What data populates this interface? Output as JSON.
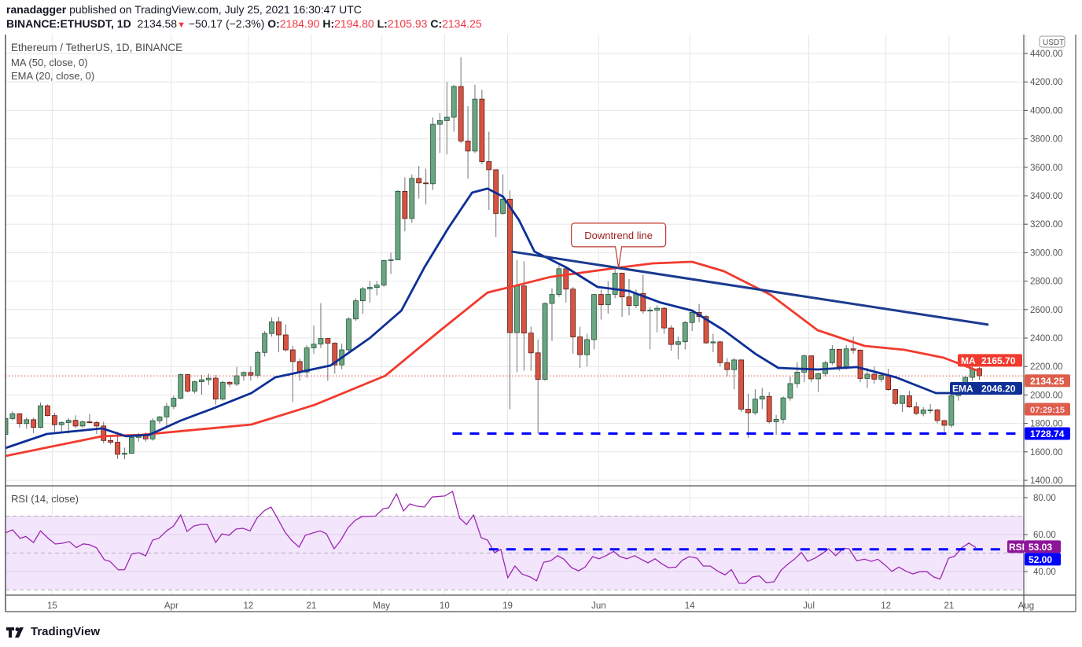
{
  "header": {
    "author": "ranadagger",
    "published": "published on TradingView.com, July 25, 2021 16:30:47 UTC",
    "symbol": "BINANCE:ETHUSDT, 1D",
    "last": "2134.58",
    "change": "−50.17 (−2.3%)",
    "o_label": "O:",
    "o": "2184.90",
    "h_label": "H:",
    "h": "2194.80",
    "l_label": "L:",
    "l": "2105.93",
    "c_label": "C:",
    "c": "2134.25"
  },
  "legend": {
    "title": "Ethereum / TetherUS, 1D, BINANCE",
    "ma": "MA (50, close, 0)",
    "ema": "EMA (20, close, 0)",
    "rsi": "RSI (14, close)"
  },
  "logo": "TradingView",
  "colors": {
    "up": "#6ba583",
    "up_border": "#225437",
    "down": "#d75442",
    "down_border": "#5b1a13",
    "ma": "#f23a2e",
    "ema": "#0d2f96",
    "rsi": "#9c27b0",
    "level": "#0000ff",
    "trend": "#1c3b8f"
  },
  "chart_data": {
    "type": "candlestick",
    "currency": "USDT",
    "start_date": "2021-03-08",
    "y_ticks": [
      "1400.00",
      "1600.00",
      "1800.00",
      "2000.00",
      "2200.00",
      "2400.00",
      "2600.00",
      "2800.00",
      "3000.00",
      "3200.00",
      "3400.00",
      "3600.00",
      "3800.00",
      "4000.00",
      "4200.00",
      "4400.00"
    ],
    "ylim": [
      1400,
      4400
    ],
    "x_ticks": [
      {
        "label": "15",
        "day": 7
      },
      {
        "label": "Apr",
        "day": 24
      },
      {
        "label": "12",
        "day": 35
      },
      {
        "label": "21",
        "day": 44
      },
      {
        "label": "May",
        "day": 54
      },
      {
        "label": "10",
        "day": 63
      },
      {
        "label": "19",
        "day": 72
      },
      {
        "label": "Jun",
        "day": 85
      },
      {
        "label": "14",
        "day": 98
      },
      {
        "label": "Jul",
        "day": 115
      },
      {
        "label": "12",
        "day": 126
      },
      {
        "label": "21",
        "day": 135
      },
      {
        "label": "Aug",
        "day": 146
      }
    ],
    "close": [
      1834,
      1868,
      1799,
      1826,
      1772,
      1924,
      1855,
      1791,
      1806,
      1822,
      1782,
      1811,
      1806,
      1782,
      1680,
      1668,
      1583,
      1590,
      1702,
      1716,
      1691,
      1819,
      1846,
      1919,
      1977,
      2143,
      2027,
      2093,
      2107,
      2118,
      1971,
      2089,
      2077,
      2135,
      2158,
      2139,
      2299,
      2432,
      2514,
      2422,
      2317,
      2235,
      2161,
      2331,
      2357,
      2397,
      2364,
      2211,
      2317,
      2534,
      2662,
      2746,
      2756,
      2772,
      2945,
      2950,
      3431,
      3240,
      3522,
      3490,
      3484,
      3902,
      3928,
      3952,
      4168,
      3785,
      3715,
      4079,
      3640,
      3583,
      3276,
      3376,
      2438,
      2766,
      2435,
      2296,
      2109,
      2643,
      2706,
      2887,
      2744,
      2408,
      2283,
      2389,
      2706,
      2634,
      2707,
      2856,
      2689,
      2629,
      2713,
      2590,
      2596,
      2609,
      2471,
      2355,
      2374,
      2509,
      2580,
      2551,
      2366,
      2373,
      2227,
      2178,
      2246,
      1900,
      1875,
      1971,
      1990,
      1812,
      1829,
      1979,
      2080,
      2160,
      2275,
      2113,
      2150,
      2226,
      2321,
      2198,
      2324,
      2315,
      2116,
      2146,
      2111,
      2139,
      2038,
      1940,
      1994,
      1916,
      1870,
      1895,
      1895,
      1820,
      1787,
      1995,
      2027,
      2124,
      2184,
      2134.25
    ],
    "high": [
      1840,
      1885,
      1872,
      1841,
      1840,
      1947,
      1933,
      1875,
      1815,
      1838,
      1857,
      1819,
      1868,
      1816,
      1812,
      1719,
      1740,
      1630,
      1705,
      1733,
      1737,
      1835,
      1853,
      1944,
      1995,
      2150,
      2145,
      2100,
      2140,
      2150,
      2140,
      2100,
      2095,
      2197,
      2165,
      2200,
      2310,
      2450,
      2545,
      2548,
      2496,
      2346,
      2255,
      2350,
      2488,
      2645,
      2400,
      2370,
      2360,
      2545,
      2680,
      2760,
      2800,
      2800,
      2950,
      3000,
      3440,
      3530,
      3550,
      3610,
      3590,
      3950,
      3980,
      4200,
      4180,
      4372,
      4030,
      4180,
      4145,
      3850,
      3440,
      3550,
      3438,
      2950,
      2940,
      2480,
      2390,
      2650,
      2750,
      2910,
      2890,
      2760,
      2480,
      2430,
      2710,
      2740,
      2800,
      2890,
      2860,
      2815,
      2740,
      2845,
      2620,
      2630,
      2620,
      2490,
      2410,
      2520,
      2600,
      2640,
      2560,
      2430,
      2380,
      2260,
      2260,
      2250,
      2010,
      2040,
      2050,
      2020,
      1860,
      1990,
      2130,
      2230,
      2285,
      2270,
      2155,
      2240,
      2350,
      2320,
      2350,
      2410,
      2320,
      2190,
      2200,
      2160,
      2185,
      2040,
      2000,
      2030,
      1950,
      1915,
      1935,
      1900,
      1825,
      2030,
      2040,
      2130,
      2215,
      2194.8
    ],
    "low": [
      1706,
      1822,
      1769,
      1762,
      1732,
      1765,
      1850,
      1740,
      1731,
      1729,
      1766,
      1767,
      1800,
      1726,
      1660,
      1651,
      1550,
      1548,
      1594,
      1672,
      1672,
      1679,
      1798,
      1780,
      1900,
      1970,
      2017,
      2010,
      2003,
      2070,
      1932,
      1960,
      2055,
      2063,
      2100,
      2100,
      2122,
      2270,
      2410,
      2300,
      2305,
      1950,
      2100,
      2120,
      2290,
      2330,
      2100,
      2150,
      2180,
      2300,
      2520,
      2570,
      2650,
      2700,
      2760,
      2850,
      2950,
      3150,
      3210,
      3380,
      3340,
      3440,
      3700,
      3690,
      3850,
      3770,
      3520,
      3700,
      3620,
      3300,
      3110,
      3265,
      1900,
      2160,
      2170,
      2170,
      1728,
      2100,
      2380,
      2690,
      2650,
      2290,
      2190,
      2200,
      2320,
      2530,
      2570,
      2680,
      2550,
      2560,
      2610,
      2570,
      2320,
      2440,
      2430,
      2310,
      2250,
      2320,
      2450,
      2510,
      2360,
      2300,
      2200,
      2130,
      2040,
      1880,
      1700,
      1860,
      1900,
      1800,
      1720,
      1800,
      1960,
      2050,
      2090,
      2090,
      2020,
      2130,
      2210,
      2170,
      2180,
      2290,
      2090,
      2050,
      2080,
      2090,
      2030,
      1930,
      1880,
      1910,
      1860,
      1850,
      1870,
      1800,
      1718,
      1770,
      1960,
      2000,
      2100,
      2105.93
    ],
    "first_open": 1723,
    "last_open": 2184.9,
    "ma50": [
      [
        0,
        1571
      ],
      [
        13.8,
        1710
      ],
      [
        19.4,
        1720
      ],
      [
        35.1,
        1792
      ],
      [
        44.1,
        1930
      ],
      [
        54.2,
        2135
      ],
      [
        62.1,
        2455
      ],
      [
        68.8,
        2720
      ],
      [
        72.2,
        2760
      ],
      [
        77.8,
        2830
      ],
      [
        87.9,
        2897
      ],
      [
        92.4,
        2925
      ],
      [
        98,
        2936
      ],
      [
        102.5,
        2870
      ],
      [
        109.2,
        2704
      ],
      [
        115.9,
        2455
      ],
      [
        122.6,
        2345
      ],
      [
        128.3,
        2317
      ],
      [
        133.9,
        2262
      ],
      [
        139,
        2165.7
      ]
    ],
    "ema20": [
      [
        0,
        1627
      ],
      [
        5.9,
        1726
      ],
      [
        13.8,
        1765
      ],
      [
        17.2,
        1710
      ],
      [
        20.5,
        1720
      ],
      [
        25,
        1820
      ],
      [
        29.5,
        1903
      ],
      [
        35.1,
        2013
      ],
      [
        38.5,
        2124
      ],
      [
        46.4,
        2207
      ],
      [
        52,
        2400
      ],
      [
        56.5,
        2593
      ],
      [
        59.8,
        2897
      ],
      [
        63.2,
        3173
      ],
      [
        66.6,
        3422
      ],
      [
        68.8,
        3450
      ],
      [
        71,
        3394
      ],
      [
        73.3,
        3228
      ],
      [
        75.5,
        3008
      ],
      [
        80,
        2897
      ],
      [
        84.5,
        2759
      ],
      [
        89,
        2731
      ],
      [
        93.5,
        2649
      ],
      [
        98,
        2593
      ],
      [
        102.5,
        2455
      ],
      [
        107,
        2290
      ],
      [
        110.3,
        2190
      ],
      [
        115.9,
        2179
      ],
      [
        121.5,
        2196
      ],
      [
        127.1,
        2124
      ],
      [
        132.8,
        2013
      ],
      [
        135,
        2013
      ],
      [
        139,
        2046.2
      ]
    ],
    "downtrend_line": {
      "label": "Downtrend line",
      "from": [
        72.2,
        3008
      ],
      "to": [
        140.3,
        2494
      ],
      "label_day": 87.5
    },
    "support_level": {
      "value": 1728.74,
      "label": "1728.74",
      "from_day": 63.8
    },
    "price_tags": {
      "ma_label": "MA",
      "ma_value": "2165.70",
      "last_value": "2134.25",
      "countdown": "07:29:15",
      "ema_label": "EMA",
      "ema_value": "2046.20",
      "ma": 2165.7,
      "last": 2134.25,
      "ema": 2046.2
    },
    "rsi": {
      "ticks": [
        "40.00",
        "60.00",
        "80.00"
      ],
      "bands": [
        30,
        70
      ],
      "level": 52,
      "level_label": "52.00",
      "level_from_day": 69,
      "tag_label": "RSI",
      "tag_value": "53.03",
      "last": 53.03,
      "points": [
        [
          0,
          60.9
        ],
        [
          1,
          62.6
        ],
        [
          2.1,
          57.9
        ],
        [
          2.9,
          59
        ],
        [
          4,
          55.7
        ],
        [
          5,
          62
        ],
        [
          6.1,
          57.9
        ],
        [
          7.1,
          54.9
        ],
        [
          8.1,
          55.3
        ],
        [
          9.1,
          56.2
        ],
        [
          10.1,
          53
        ],
        [
          11.1,
          55
        ],
        [
          12,
          54.5
        ],
        [
          13,
          52.8
        ],
        [
          14.1,
          46.4
        ],
        [
          14.9,
          45.5
        ],
        [
          16.1,
          40.9
        ],
        [
          17,
          41
        ],
        [
          18,
          49.4
        ],
        [
          19,
          50.2
        ],
        [
          20,
          48.5
        ],
        [
          21,
          57
        ],
        [
          21.9,
          58
        ],
        [
          23,
          62
        ],
        [
          24,
          64.7
        ],
        [
          25,
          70.6
        ],
        [
          25.9,
          61.7
        ],
        [
          26.9,
          64.7
        ],
        [
          27.9,
          65.5
        ],
        [
          28.8,
          65.5
        ],
        [
          30,
          55.7
        ],
        [
          30.9,
          60.4
        ],
        [
          31.9,
          59.6
        ],
        [
          32.9,
          63
        ],
        [
          33.9,
          63.4
        ],
        [
          34.9,
          62
        ],
        [
          35.9,
          69
        ],
        [
          37,
          73.1
        ],
        [
          37.9,
          74.9
        ],
        [
          38.8,
          69
        ],
        [
          39.9,
          61.3
        ],
        [
          40.8,
          57
        ],
        [
          41.9,
          53.2
        ],
        [
          42.8,
          59.6
        ],
        [
          43.9,
          60.9
        ],
        [
          44.9,
          62
        ],
        [
          45.8,
          60.4
        ],
        [
          46.9,
          52.3
        ],
        [
          47.8,
          56.6
        ],
        [
          48.9,
          63.8
        ],
        [
          49.9,
          67.7
        ],
        [
          50.9,
          69.8
        ],
        [
          52.8,
          70
        ],
        [
          53.9,
          74
        ],
        [
          54.7,
          74.5
        ],
        [
          55.8,
          82
        ],
        [
          56.8,
          72.8
        ],
        [
          57.7,
          76.6
        ],
        [
          58.8,
          75.3
        ],
        [
          59.8,
          74.9
        ],
        [
          60.9,
          80.4
        ],
        [
          62.7,
          80.9
        ],
        [
          63.8,
          83.4
        ],
        [
          64.8,
          69
        ],
        [
          65.8,
          65.5
        ],
        [
          66.8,
          70.6
        ],
        [
          67.9,
          58.3
        ],
        [
          68.8,
          57
        ],
        [
          69.8,
          50.2
        ],
        [
          70.7,
          52
        ],
        [
          71.7,
          36.7
        ],
        [
          72.7,
          43
        ],
        [
          73.7,
          38.7
        ],
        [
          74.9,
          37
        ],
        [
          75.8,
          35
        ],
        [
          76.8,
          45
        ],
        [
          77.8,
          45.8
        ],
        [
          78.8,
          48.6
        ],
        [
          79.7,
          46.7
        ],
        [
          80.8,
          42.1
        ],
        [
          81.8,
          40.4
        ],
        [
          82.7,
          42.4
        ],
        [
          83.8,
          48.1
        ],
        [
          84.7,
          46.9
        ],
        [
          85.6,
          48.4
        ],
        [
          86.8,
          50.9
        ],
        [
          87.7,
          48.1
        ],
        [
          88.7,
          46.9
        ],
        [
          89.8,
          48.6
        ],
        [
          90.7,
          46.7
        ],
        [
          91.7,
          44.7
        ],
        [
          92.7,
          46.9
        ],
        [
          93.6,
          44.4
        ],
        [
          94.6,
          42.1
        ],
        [
          95.7,
          42.4
        ],
        [
          96.6,
          46.1
        ],
        [
          97.6,
          48.1
        ],
        [
          98.7,
          47.2
        ],
        [
          99.6,
          43
        ],
        [
          100.6,
          43
        ],
        [
          101.7,
          40.1
        ],
        [
          102.7,
          38.2
        ],
        [
          103.6,
          41
        ],
        [
          104.7,
          33.6
        ],
        [
          105.6,
          33.6
        ],
        [
          106.6,
          37
        ],
        [
          107.6,
          37.6
        ],
        [
          108.6,
          33.9
        ],
        [
          109.7,
          34.5
        ],
        [
          110.7,
          40.7
        ],
        [
          111.7,
          44.1
        ],
        [
          112.6,
          46.7
        ],
        [
          113.6,
          50.3
        ],
        [
          114.5,
          45.5
        ],
        [
          115.5,
          47.2
        ],
        [
          116.5,
          49.5
        ],
        [
          117.5,
          52.3
        ],
        [
          118.5,
          48.6
        ],
        [
          119.6,
          52.6
        ],
        [
          120.4,
          52.3
        ],
        [
          121.5,
          45.8
        ],
        [
          122.6,
          46.7
        ],
        [
          123.6,
          45.5
        ],
        [
          124.5,
          46.7
        ],
        [
          125.6,
          43.3
        ],
        [
          126.5,
          40.1
        ],
        [
          127.5,
          42.4
        ],
        [
          128.6,
          40.1
        ],
        [
          129.5,
          38.7
        ],
        [
          130.5,
          39.9
        ],
        [
          131.5,
          39.9
        ],
        [
          132.5,
          37
        ],
        [
          133.4,
          35.9
        ],
        [
          134.6,
          47.2
        ],
        [
          135.5,
          48.4
        ],
        [
          136.5,
          52.9
        ],
        [
          137.5,
          55.4
        ],
        [
          138.5,
          53.03
        ]
      ]
    }
  }
}
